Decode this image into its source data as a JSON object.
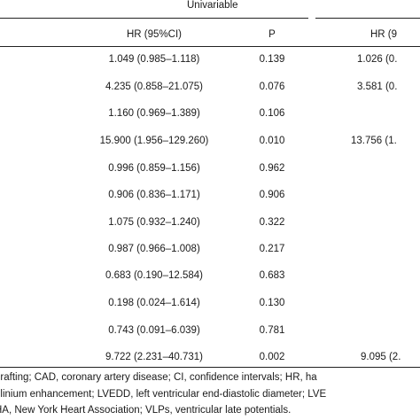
{
  "table": {
    "group_title": "Univariable",
    "headers": {
      "hr": "HR (95%CI)",
      "p": "P",
      "hr2": "HR (9"
    },
    "rows": [
      {
        "hr": "1.049 (0.985–1.118)",
        "p": "0.139",
        "hr2": "1.026 (0."
      },
      {
        "hr": "4.235 (0.858–21.075)",
        "p": "0.076",
        "hr2": "3.581 (0."
      },
      {
        "hr": "1.160 (0.969–1.389)",
        "p": "0.106",
        "hr2": ""
      },
      {
        "hr": "15.900 (1.956–129.260)",
        "p": "0.010",
        "hr2": "13.756 (1."
      },
      {
        "hr": "0.996 (0.859–1.156)",
        "p": "0.962",
        "hr2": ""
      },
      {
        "hr": "0.906 (0.836–1.171)",
        "p": "0.906",
        "hr2": ""
      },
      {
        "hr": "1.075 (0.932–1.240)",
        "p": "0.322",
        "hr2": ""
      },
      {
        "hr": "0.987 (0.966–1.008)",
        "p": "0.217",
        "hr2": ""
      },
      {
        "hr": "0.683 (0.190–12.584)",
        "p": "0.683",
        "hr2": ""
      },
      {
        "hr": "0.198 (0.024–1.614)",
        "p": "0.130",
        "hr2": ""
      },
      {
        "hr": "0.743 (0.091–6.039)",
        "p": "0.781",
        "hr2": ""
      },
      {
        "hr": "9.722 (2.231–40.731)",
        "p": "0.002",
        "hr2": "9.095 (2."
      }
    ]
  },
  "footnote": {
    "line1": "grafting; CAD, coronary artery disease; CI, confidence intervals; HR, ha",
    "line2": "olinium enhancement; LVEDD, left ventricular end-diastolic diameter; LVE",
    "line3": "HA, New York Heart Association; VLPs, ventricular late potentials."
  }
}
